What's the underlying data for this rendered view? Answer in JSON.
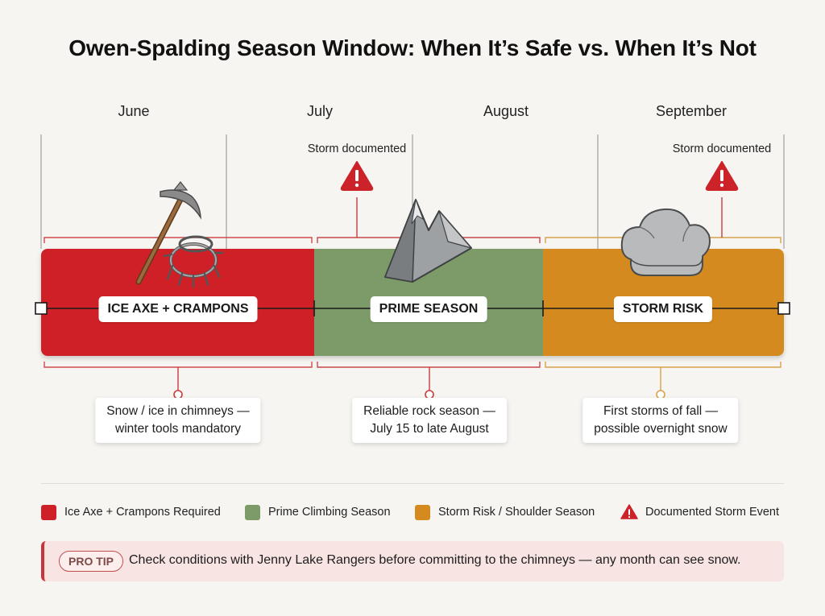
{
  "title": "Owen-Spalding Season Window: When It’s Safe vs. When It’s Not",
  "months": [
    "June",
    "July",
    "August",
    "September"
  ],
  "storm_markers": [
    {
      "label": "Storm documented",
      "icon": "warning-icon"
    },
    {
      "label": "Storm documented",
      "icon": "warning-icon"
    }
  ],
  "bands": [
    {
      "label": "ICE AXE + CRAMPONS",
      "color": "#cf2027",
      "icon": "ice-axe-crampons-icon"
    },
    {
      "label": "PRIME SEASON",
      "color": "#7d9b69",
      "icon": "mountain-icon"
    },
    {
      "label": "STORM RISK",
      "color": "#d48a1e",
      "icon": "storm-cloud-icon"
    }
  ],
  "notes": [
    {
      "line1": "Snow / ice in chimneys —",
      "line2": "winter tools mandatory"
    },
    {
      "line1": "Reliable rock season —",
      "line2": "July 15 to late August"
    },
    {
      "line1": "First storms of fall —",
      "line2": "possible overnight snow"
    }
  ],
  "legend": [
    {
      "label": "Ice Axe + Crampons Required",
      "color": "#cf2027"
    },
    {
      "label": "Prime Climbing Season",
      "color": "#7d9b69"
    },
    {
      "label": "Storm Risk / Shoulder Season",
      "color": "#d48a1e"
    },
    {
      "label": "Documented Storm Event",
      "icon": "warning-icon",
      "color": "#cc2229"
    }
  ],
  "tip": {
    "badge": "PRO TIP",
    "text": "Check conditions with Jenny Lake Rangers before committing to the chimneys — any month can see snow."
  }
}
